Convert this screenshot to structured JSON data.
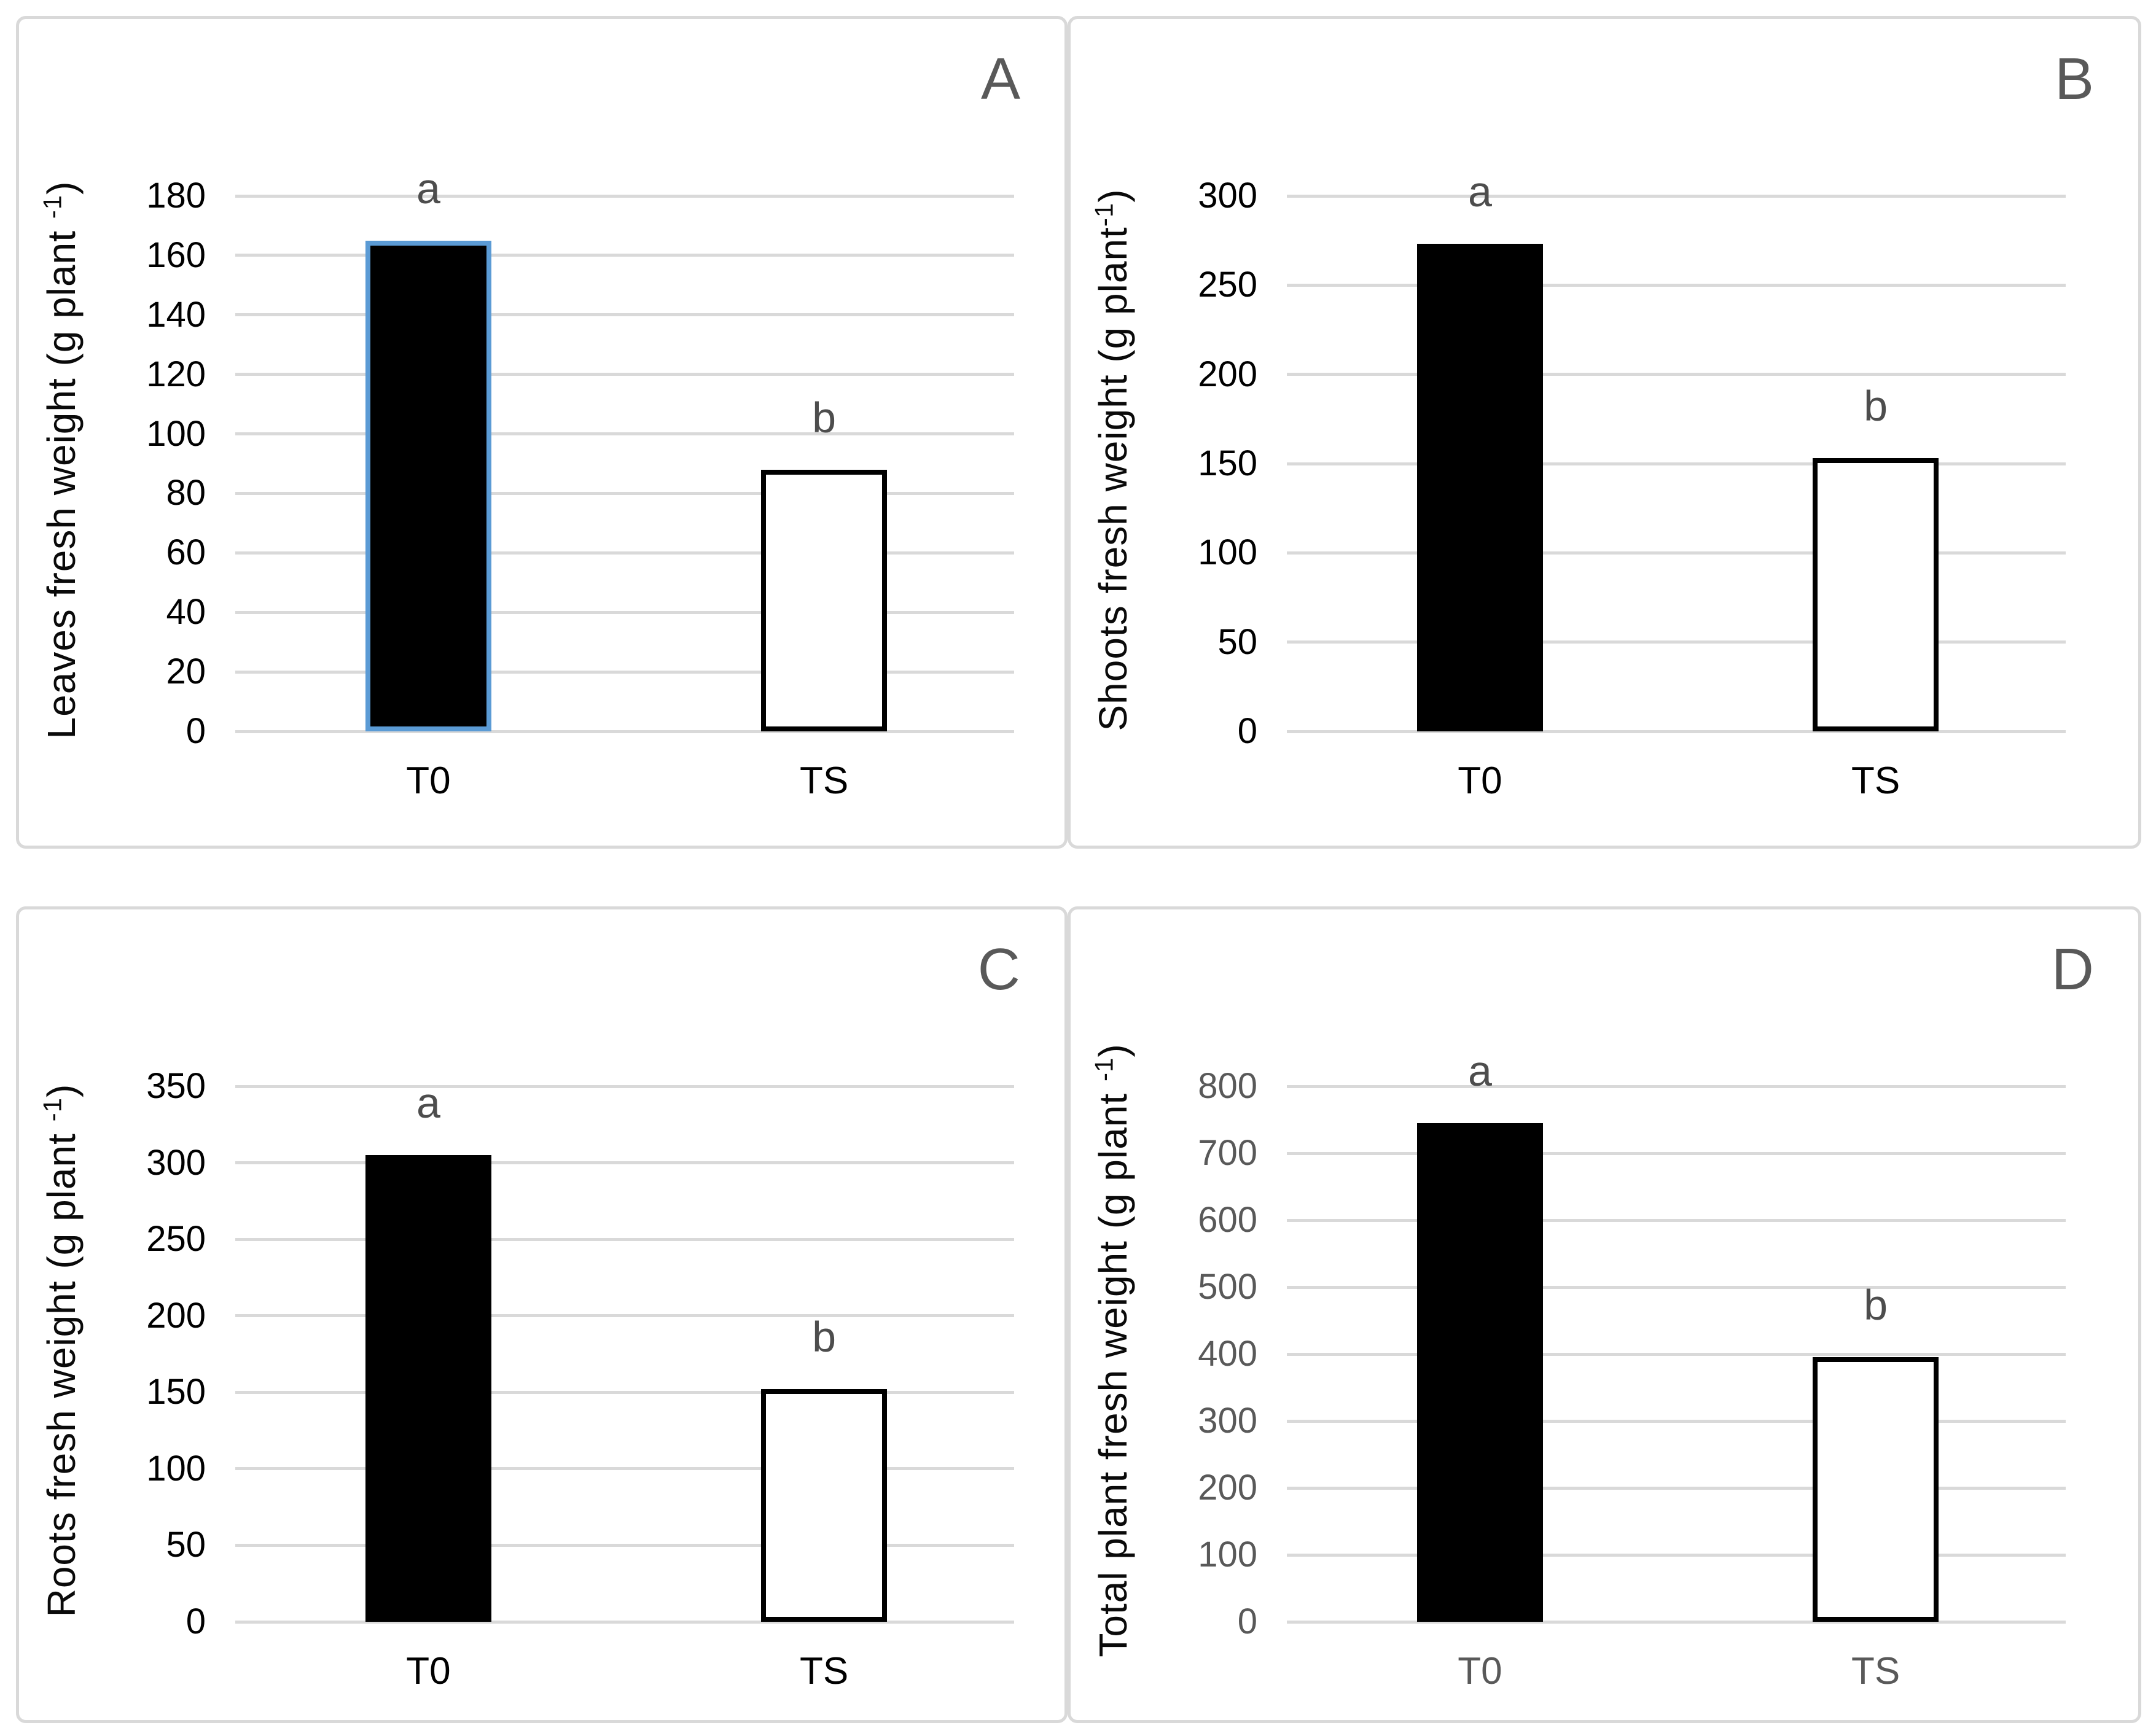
{
  "figure": {
    "background": "#ffffff",
    "panel_border_color": "#d9d9d9",
    "gridline_color": "#d9d9d9",
    "panel_letter_color": "#595959",
    "sig_letter_color": "#4d4d4d"
  },
  "chart_data": [
    {
      "type": "bar",
      "panel_letter": "A",
      "ylabel_prefix": "Leaves fresh weight (g plant ",
      "ylabel_sup": "-1",
      "ylabel_suffix": ")",
      "categories": [
        "T0",
        "TS"
      ],
      "values": [
        165,
        88
      ],
      "sig_labels": [
        "a",
        "b"
      ],
      "ylim": [
        0,
        180
      ],
      "ytick_step": 20,
      "grid": true,
      "legend": "none",
      "axis_text_color": "#000000",
      "bar_styles": [
        {
          "fill": "#000000",
          "border": "#5b9bd5"
        },
        {
          "fill": "#ffffff",
          "border": "#000000"
        }
      ]
    },
    {
      "type": "bar",
      "panel_letter": "B",
      "ylabel_prefix": "Shoots fresh weight (g plant",
      "ylabel_sup": "-1",
      "ylabel_suffix": ")",
      "categories": [
        "T0",
        "TS"
      ],
      "values": [
        273,
        153
      ],
      "sig_labels": [
        "a",
        "b"
      ],
      "ylim": [
        0,
        300
      ],
      "ytick_step": 50,
      "grid": true,
      "legend": "none",
      "axis_text_color": "#000000",
      "bar_styles": [
        {
          "fill": "#000000",
          "border": "#000000"
        },
        {
          "fill": "#ffffff",
          "border": "#000000"
        }
      ]
    },
    {
      "type": "bar",
      "panel_letter": "C",
      "ylabel_prefix": "Roots fresh weight (g plant ",
      "ylabel_sup": "-1",
      "ylabel_suffix": ")",
      "categories": [
        "T0",
        "TS"
      ],
      "values": [
        305,
        152
      ],
      "sig_labels": [
        "a",
        "b"
      ],
      "ylim": [
        0,
        350
      ],
      "ytick_step": 50,
      "grid": true,
      "legend": "none",
      "axis_text_color": "#000000",
      "bar_styles": [
        {
          "fill": "#000000",
          "border": "#000000"
        },
        {
          "fill": "#ffffff",
          "border": "#000000"
        }
      ]
    },
    {
      "type": "bar",
      "panel_letter": "D",
      "ylabel_prefix": "Total plant fresh weight (g plant ",
      "ylabel_sup": "-1",
      "ylabel_suffix": ")",
      "categories": [
        "T0",
        "TS"
      ],
      "values": [
        745,
        395
      ],
      "sig_labels": [
        "a",
        "b"
      ],
      "ylim": [
        0,
        800
      ],
      "ytick_step": 100,
      "grid": true,
      "legend": "none",
      "axis_text_color": "#595959",
      "bar_styles": [
        {
          "fill": "#000000",
          "border": "#000000"
        },
        {
          "fill": "#ffffff",
          "border": "#000000"
        }
      ]
    }
  ]
}
